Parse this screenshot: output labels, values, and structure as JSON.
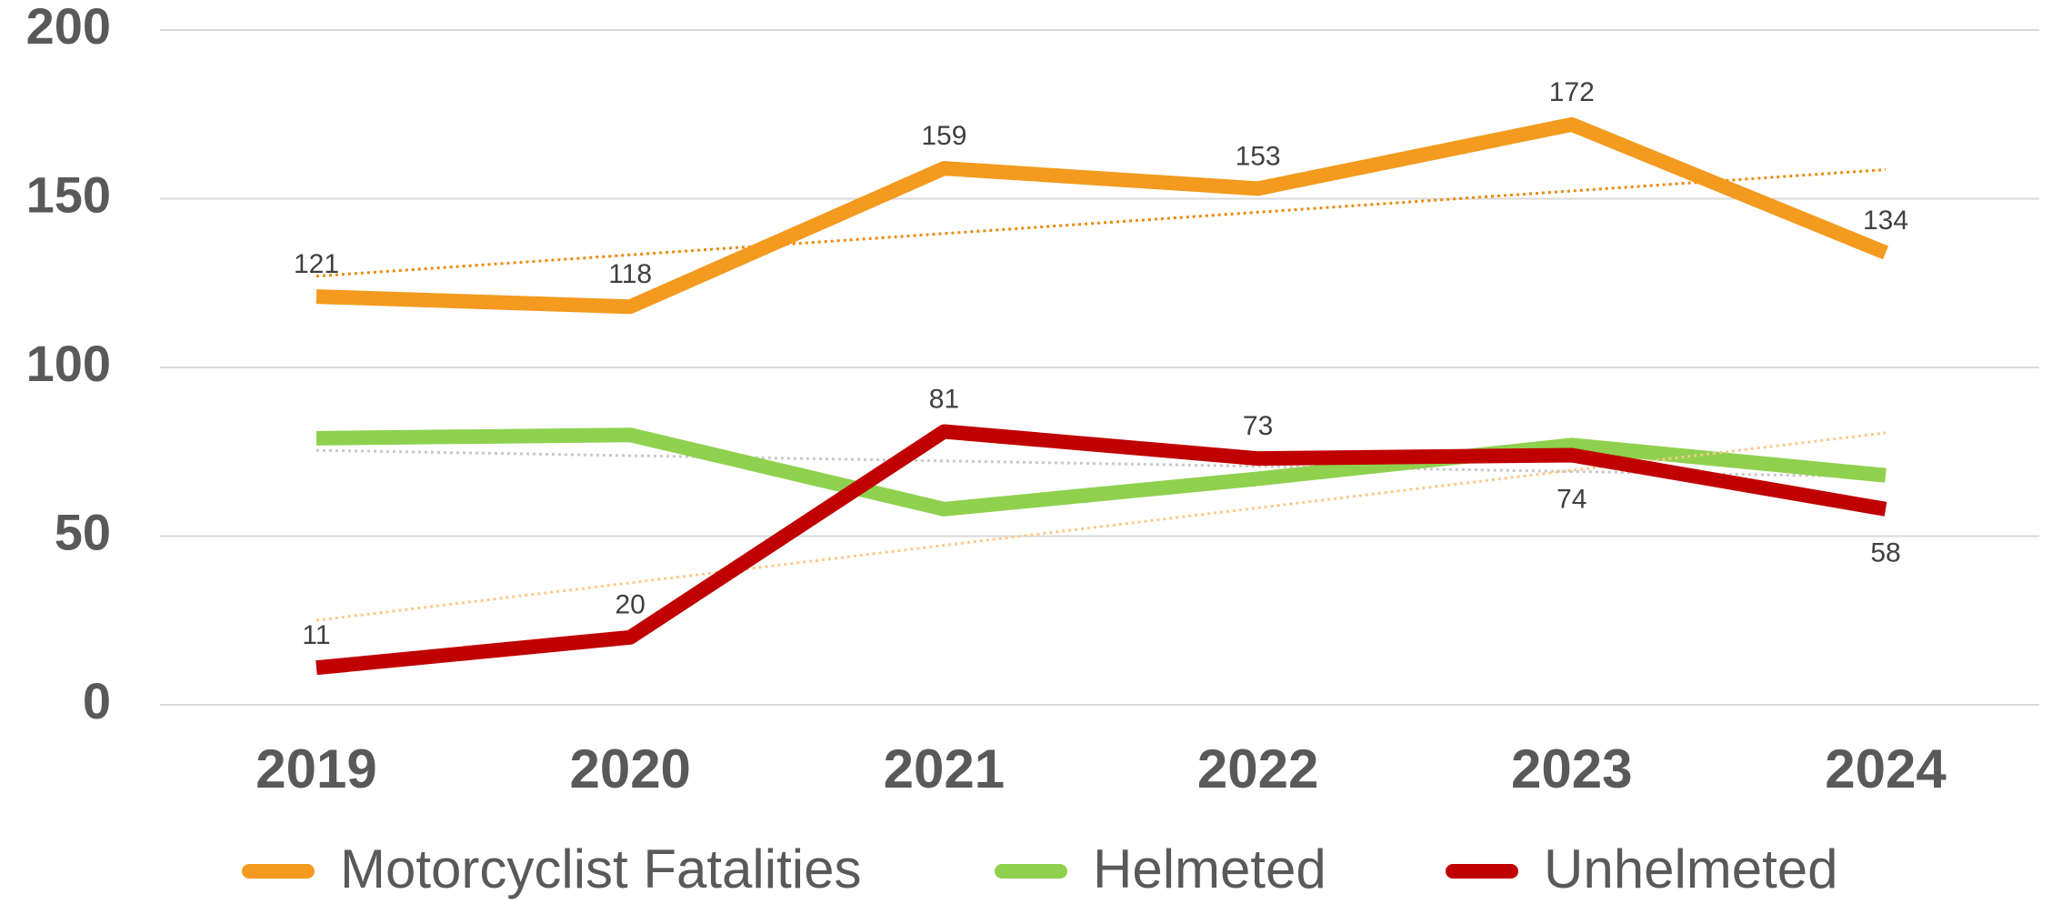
{
  "chart_data": {
    "type": "line",
    "categories": [
      "2019",
      "2020",
      "2021",
      "2022",
      "2023",
      "2024"
    ],
    "series": [
      {
        "name": "Motorcyclist Fatalities",
        "color": "#f39a1f",
        "trend_color": "#e98a0c",
        "data_labels": true,
        "values": [
          121,
          118,
          159,
          153,
          172,
          134
        ]
      },
      {
        "name": "Helmeted",
        "color": "#8fd14f",
        "trend_color": "#c8c8c8",
        "data_labels": false,
        "values": [
          79,
          80,
          58,
          67,
          77,
          68
        ]
      },
      {
        "name": "Unhelmeted",
        "color": "#c00000",
        "trend_color": "#fbc98a",
        "data_labels": true,
        "values": [
          11,
          20,
          81,
          73,
          74,
          58
        ]
      }
    ],
    "ylim": [
      0,
      200
    ],
    "yticks": [
      0,
      50,
      100,
      150,
      200
    ],
    "grid": true,
    "trendlines": true,
    "legend": "bottom"
  }
}
